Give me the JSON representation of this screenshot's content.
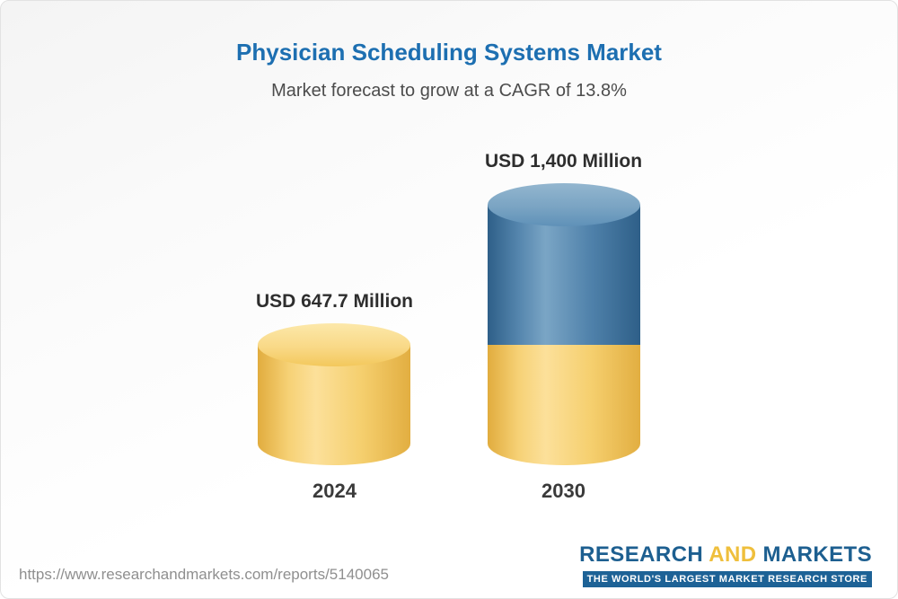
{
  "page": {
    "title": "Physician Scheduling Systems Market",
    "subtitle": "Market forecast to grow at a CAGR of 13.8%",
    "source_url": "https://www.researchandmarkets.com/reports/5140065"
  },
  "logo": {
    "part1": "RESEARCH",
    "part2": "AND",
    "part3": "MARKETS",
    "tagline": "THE WORLD'S LARGEST MARKET RESEARCH STORE"
  },
  "colors": {
    "title_blue": "#1d6fb1",
    "subtitle_gray": "#4c4c4c",
    "bar_gold": "#F5CE6E",
    "bar_steel": "#4F81AA",
    "logo_blue": "#1d5f90",
    "logo_gold": "#efbf3c",
    "url_gray": "#8f8f8f"
  },
  "chart_data": {
    "type": "bar",
    "subtype": "3d-cylinder-stacked",
    "title": "Physician Scheduling Systems Market",
    "subtitle": "Market forecast to grow at a CAGR of 13.8%",
    "unit": "USD Million",
    "cagr": "13.8%",
    "categories": [
      "2024",
      "2030"
    ],
    "ylim": [
      0,
      1400
    ],
    "legend": "none",
    "grid": false,
    "bars": [
      {
        "category": "2024",
        "total": 647.7,
        "label": "USD 647.7 Million",
        "segments": [
          {
            "name": "2024 market size",
            "value": 647.7,
            "palette": "gold",
            "color": "#F5CE6E"
          }
        ]
      },
      {
        "category": "2030",
        "total": 1400,
        "label": "USD 1,400 Million",
        "segments": [
          {
            "name": "base (2024 level)",
            "value": 647.7,
            "palette": "gold",
            "color": "#F5CE6E"
          },
          {
            "name": "forecast growth to 2030",
            "value": 752.3,
            "palette": "steel",
            "color": "#4F81AA"
          }
        ]
      }
    ]
  }
}
